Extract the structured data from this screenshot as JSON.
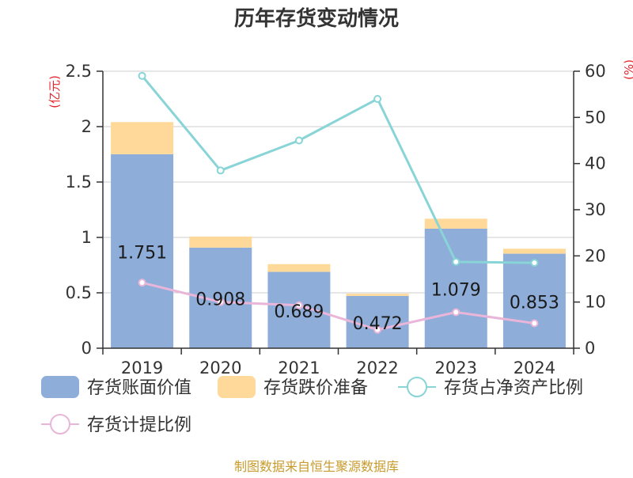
{
  "chart_data": {
    "type": "bar",
    "title": "历年存货变动情况",
    "categories": [
      "2019",
      "2020",
      "2021",
      "2022",
      "2023",
      "2024"
    ],
    "y_left": {
      "unit_label": "(亿元)",
      "ylim": [
        0,
        2.5
      ],
      "ticks": [
        "0",
        "0.5",
        "1",
        "1.5",
        "2",
        "2.5"
      ],
      "tick_values": [
        0,
        0.5,
        1,
        1.5,
        2,
        2.5
      ]
    },
    "y_right": {
      "unit_label": "(%)",
      "ylim": [
        0,
        60
      ],
      "ticks": [
        "0",
        "10",
        "20",
        "30",
        "40",
        "50",
        "60"
      ],
      "tick_values": [
        0,
        10,
        20,
        30,
        40,
        50,
        60
      ]
    },
    "stacked_series": [
      {
        "name": "存货账面价值",
        "color": "#8eadd9",
        "values": [
          1.751,
          0.908,
          0.689,
          0.472,
          1.079,
          0.853
        ],
        "labels": [
          "1.751",
          "0.908",
          "0.689",
          "0.472",
          "1.079",
          "0.853"
        ]
      },
      {
        "name": "存货跌价准备",
        "color": "#ffd99a",
        "values": [
          0.29,
          0.1,
          0.07,
          0.02,
          0.09,
          0.045
        ]
      }
    ],
    "line_series": [
      {
        "name": "存货占净资产比例",
        "color": "#88d4d7",
        "values": [
          59,
          38.5,
          45,
          54,
          18.7,
          18.5
        ]
      },
      {
        "name": "存货计提比例",
        "color": "#e9b6d9",
        "values": [
          14.2,
          10,
          9.3,
          4,
          7.8,
          5.4
        ]
      }
    ],
    "legend_position": "bottom",
    "grid": true
  },
  "source": "制图数据来自恒生聚源数据库"
}
